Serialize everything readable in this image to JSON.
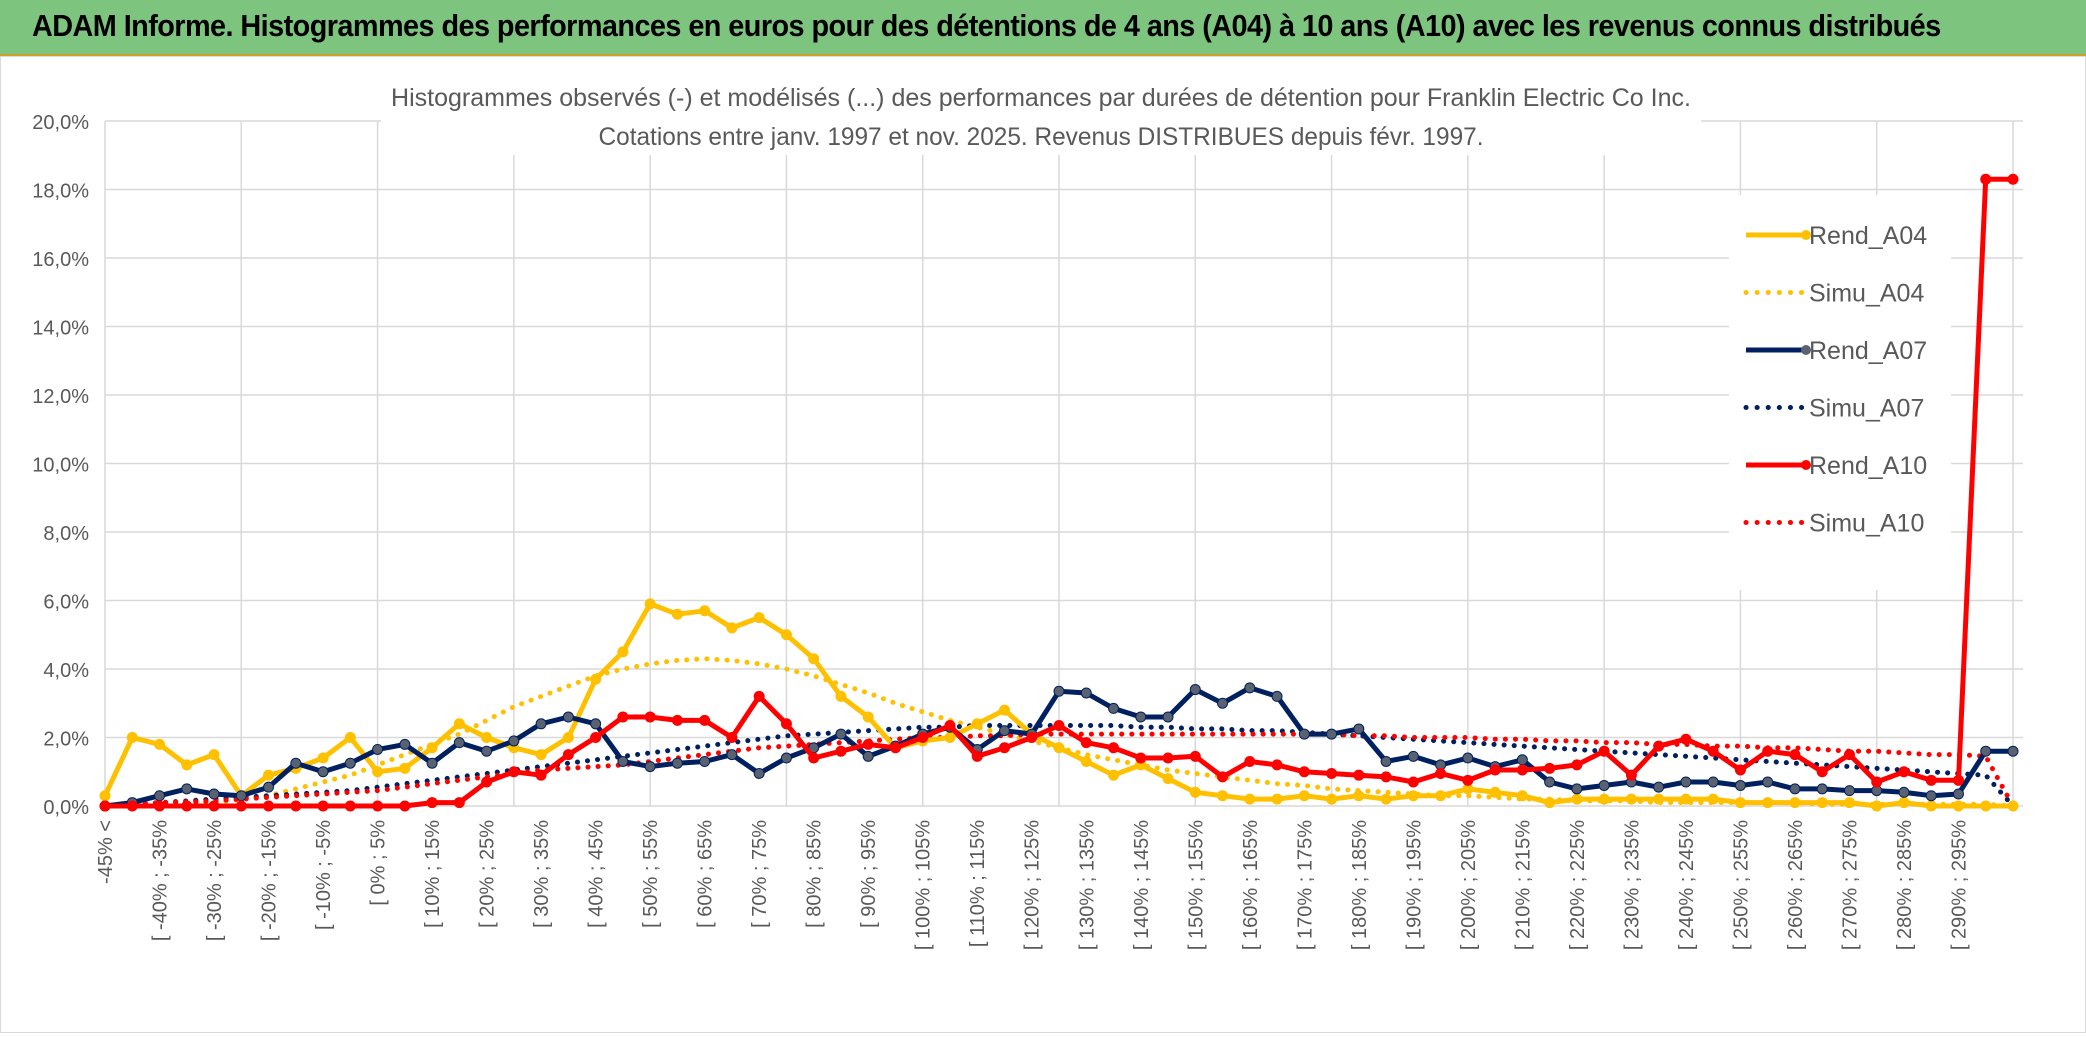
{
  "header": {
    "title": "ADAM Informe. Histogrammes des performances en euros pour des détentions de 4 ans (A04) à 10 ans (A10) avec les revenus connus distribués"
  },
  "colors": {
    "header_bg": "#7dc47f",
    "a04": "#ffc000",
    "a07": "#002060",
    "a07_marker": "#5a6270",
    "a10": "#ff0000",
    "grid": "#d9d9d9"
  },
  "chart_data": {
    "type": "line",
    "title": "Histogrammes observés (-) et modélisés (...) des performances par durées de détention pour Franklin Electric Co Inc.",
    "subtitle": "Cotations entre janv. 1997 et nov. 2025. Revenus DISTRIBUES depuis févr. 1997.",
    "xlabel": "",
    "ylabel": "",
    "ylim": [
      0,
      20
    ],
    "yticks": [
      "0,0%",
      "2,0%",
      "4,0%",
      "6,0%",
      "8,0%",
      "10,0%",
      "12,0%",
      "14,0%",
      "16,0%",
      "18,0%",
      "20,0%"
    ],
    "grid": true,
    "legend_position": "right",
    "categories": [
      "-45% <",
      "[ -45% ; -40%",
      "[ -40% ; -35%",
      "[ -35% ; -30%",
      "[ -30% ; -25%",
      "[ -25% ; -20%",
      "[ -20% ; -15%",
      "[ -15% ; -10%",
      "[ -10% ; -5%",
      "[ -5% ; 0%",
      "[ 0% ; 5%",
      "[ 5% ; 10%",
      "[ 10% ; 15%",
      "[ 15% ; 20%",
      "[ 20% ; 25%",
      "[ 25% ; 30%",
      "[ 30% ; 35%",
      "[ 35% ; 40%",
      "[ 40% ; 45%",
      "[ 45% ; 50%",
      "[ 50% ; 55%",
      "[ 55% ; 60%",
      "[ 60% ; 65%",
      "[ 65% ; 70%",
      "[ 70% ; 75%",
      "[ 75% ; 80%",
      "[ 80% ; 85%",
      "[ 85% ; 90%",
      "[ 90% ; 95%",
      "[ 95% ; 100%",
      "[ 100% ; 105%",
      "[ 105% ; 110%",
      "[ 110% ; 115%",
      "[ 115% ; 120%",
      "[ 120% ; 125%",
      "[ 125% ; 130%",
      "[ 130% ; 135%",
      "[ 135% ; 140%",
      "[ 140% ; 145%",
      "[ 145% ; 150%",
      "[ 150% ; 155%",
      "[ 155% ; 160%",
      "[ 160% ; 165%",
      "[ 165% ; 170%",
      "[ 170% ; 175%",
      "[ 175% ; 180%",
      "[ 180% ; 185%",
      "[ 185% ; 190%",
      "[ 190% ; 195%",
      "[ 195% ; 200%",
      "[ 200% ; 205%",
      "[ 205% ; 210%",
      "[ 210% ; 215%",
      "[ 215% ; 220%",
      "[ 220% ; 225%",
      "[ 225% ; 230%",
      "[ 230% ; 235%",
      "[ 235% ; 240%",
      "[ 240% ; 245%",
      "[ 245% ; 250%",
      "[ 250% ; 255%",
      "[ 255% ; 260%",
      "[ 260% ; 265%",
      "[ 265% ; 270%",
      "[ 270% ; 275%",
      "[ 275% ; 280%",
      "[ 280% ; 285%",
      "[ 285% ; 290%",
      "[ 290% ; 295%",
      "[ 295% ; 300%",
      "300% >"
    ],
    "xtick_labels": [
      "-45% <",
      "[ -40% ; -35%",
      "[ -30% ; -25%",
      "[ -20% ; -15%",
      "[ -10% ; -5%",
      "[ 0% ; 5%",
      "[ 10% ; 15%",
      "[ 20% ; 25%",
      "[ 30% ; 35%",
      "[ 40% ; 45%",
      "[ 50% ; 55%",
      "[ 60% ; 65%",
      "[ 70% ; 75%",
      "[ 80% ; 85%",
      "[ 90% ; 95%",
      "[ 100% ; 105%",
      "[ 110% ; 115%",
      "[ 120% ; 125%",
      "[ 130% ; 135%",
      "[ 140% ; 145%",
      "[ 150% ; 155%",
      "[ 160% ; 165%",
      "[ 170% ; 175%",
      "[ 180% ; 185%",
      "[ 190% ; 195%",
      "[ 200% ; 205%",
      "[ 210% ; 215%",
      "[ 220% ; 225%",
      "[ 230% ; 235%",
      "[ 240% ; 245%",
      "[ 250% ; 255%",
      "[ 260% ; 265%",
      "[ 270% ; 275%",
      "[ 280% ; 285%",
      "[ 290% ; 295%"
    ],
    "series": [
      {
        "name": "Rend_A04",
        "style": "solid",
        "color": "#ffc000",
        "values": [
          0.3,
          2.0,
          1.8,
          1.2,
          1.5,
          0.3,
          0.9,
          1.1,
          1.4,
          2.0,
          1.0,
          1.1,
          1.7,
          2.4,
          2.0,
          1.7,
          1.5,
          2.0,
          3.7,
          4.5,
          5.9,
          5.6,
          5.7,
          5.2,
          5.5,
          5.0,
          4.3,
          3.2,
          2.6,
          1.7,
          1.9,
          2.0,
          2.4,
          2.8,
          2.1,
          1.7,
          1.3,
          0.9,
          1.2,
          0.8,
          0.4,
          0.3,
          0.2,
          0.2,
          0.3,
          0.2,
          0.3,
          0.2,
          0.3,
          0.3,
          0.5,
          0.4,
          0.3,
          0.1,
          0.2,
          0.2,
          0.2,
          0.2,
          0.2,
          0.2,
          0.1,
          0.1,
          0.1,
          0.1,
          0.1,
          0.0,
          0.1,
          0.0,
          0.0,
          0.0,
          0.0
        ]
      },
      {
        "name": "Simu_A04",
        "style": "dotted",
        "color": "#ffc000",
        "values": [
          0.0,
          0.0,
          0.0,
          0.1,
          0.1,
          0.2,
          0.3,
          0.5,
          0.7,
          0.9,
          1.2,
          1.5,
          1.8,
          2.1,
          2.5,
          2.9,
          3.2,
          3.5,
          3.8,
          4.0,
          4.15,
          4.25,
          4.3,
          4.25,
          4.15,
          4.0,
          3.8,
          3.55,
          3.3,
          3.0,
          2.75,
          2.5,
          2.3,
          2.1,
          1.9,
          1.7,
          1.5,
          1.35,
          1.2,
          1.05,
          0.95,
          0.85,
          0.75,
          0.65,
          0.6,
          0.5,
          0.45,
          0.4,
          0.35,
          0.3,
          0.3,
          0.25,
          0.2,
          0.2,
          0.15,
          0.15,
          0.15,
          0.1,
          0.1,
          0.1,
          0.1,
          0.1,
          0.1,
          0.05,
          0.05,
          0.05,
          0.05,
          0.05,
          0.05,
          0.05,
          0.0
        ]
      },
      {
        "name": "Rend_A07",
        "style": "solid",
        "color": "#002060",
        "values": [
          0.0,
          0.1,
          0.3,
          0.5,
          0.35,
          0.3,
          0.55,
          1.25,
          1.0,
          1.25,
          1.65,
          1.8,
          1.25,
          1.85,
          1.6,
          1.9,
          2.4,
          2.6,
          2.4,
          1.3,
          1.15,
          1.25,
          1.3,
          1.5,
          0.95,
          1.4,
          1.7,
          2.1,
          1.45,
          1.75,
          2.1,
          2.3,
          1.65,
          2.2,
          2.1,
          3.35,
          3.3,
          2.85,
          2.6,
          2.6,
          3.4,
          3.0,
          3.45,
          3.2,
          2.1,
          2.1,
          2.25,
          1.3,
          1.45,
          1.2,
          1.4,
          1.15,
          1.35,
          0.7,
          0.5,
          0.6,
          0.7,
          0.55,
          0.7,
          0.7,
          0.6,
          0.7,
          0.5,
          0.5,
          0.45,
          0.45,
          0.4,
          0.3,
          0.35,
          1.6,
          1.6
        ]
      },
      {
        "name": "Simu_A07",
        "style": "dotted",
        "color": "#002060",
        "values": [
          0.0,
          0.05,
          0.1,
          0.15,
          0.2,
          0.25,
          0.3,
          0.35,
          0.4,
          0.45,
          0.55,
          0.65,
          0.75,
          0.85,
          0.95,
          1.05,
          1.15,
          1.25,
          1.35,
          1.45,
          1.55,
          1.65,
          1.75,
          1.85,
          1.95,
          2.05,
          2.1,
          2.15,
          2.2,
          2.25,
          2.3,
          2.3,
          2.35,
          2.35,
          2.35,
          2.35,
          2.35,
          2.35,
          2.3,
          2.3,
          2.25,
          2.25,
          2.2,
          2.2,
          2.15,
          2.1,
          2.05,
          2.0,
          1.95,
          1.9,
          1.85,
          1.8,
          1.75,
          1.7,
          1.65,
          1.6,
          1.55,
          1.5,
          1.45,
          1.4,
          1.35,
          1.3,
          1.25,
          1.2,
          1.15,
          1.1,
          1.05,
          1.0,
          0.95,
          0.9,
          0.0
        ]
      },
      {
        "name": "Rend_A10",
        "style": "solid",
        "color": "#ff0000",
        "values": [
          0.0,
          0.0,
          0.0,
          0.0,
          0.0,
          0.0,
          0.0,
          0.0,
          0.0,
          0.0,
          0.0,
          0.0,
          0.1,
          0.1,
          0.7,
          1.0,
          0.9,
          1.5,
          2.0,
          2.6,
          2.6,
          2.5,
          2.5,
          2.0,
          3.2,
          2.4,
          1.4,
          1.6,
          1.8,
          1.7,
          2.0,
          2.35,
          1.45,
          1.7,
          2.0,
          2.35,
          1.85,
          1.7,
          1.4,
          1.4,
          1.45,
          0.85,
          1.3,
          1.2,
          1.0,
          0.95,
          0.9,
          0.85,
          0.7,
          0.95,
          0.75,
          1.05,
          1.05,
          1.1,
          1.2,
          1.6,
          0.9,
          1.75,
          1.95,
          1.6,
          1.05,
          1.6,
          1.5,
          1.0,
          1.5,
          0.7,
          1.0,
          0.75,
          0.75,
          18.3,
          18.3
        ]
      },
      {
        "name": "Simu_A10",
        "style": "dotted",
        "color": "#ff0000",
        "values": [
          0.0,
          0.05,
          0.1,
          0.12,
          0.15,
          0.2,
          0.25,
          0.3,
          0.35,
          0.4,
          0.45,
          0.55,
          0.65,
          0.75,
          0.85,
          0.95,
          1.05,
          1.1,
          1.15,
          1.2,
          1.3,
          1.4,
          1.5,
          1.6,
          1.7,
          1.75,
          1.8,
          1.85,
          1.9,
          1.95,
          2.0,
          2.0,
          2.05,
          2.05,
          2.1,
          2.1,
          2.1,
          2.1,
          2.1,
          2.1,
          2.1,
          2.1,
          2.1,
          2.1,
          2.1,
          2.1,
          2.05,
          2.05,
          2.0,
          2.0,
          2.0,
          1.95,
          1.95,
          1.9,
          1.9,
          1.85,
          1.85,
          1.8,
          1.8,
          1.75,
          1.75,
          1.7,
          1.7,
          1.65,
          1.6,
          1.6,
          1.55,
          1.5,
          1.5,
          1.45,
          0.0
        ]
      }
    ]
  }
}
